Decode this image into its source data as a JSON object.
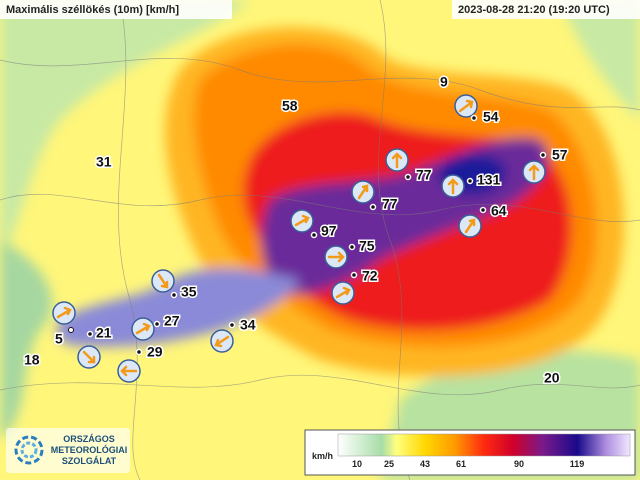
{
  "header": {
    "title": "Maximális széllökés (10m) [km/h]",
    "timestamp": "2023-08-28 21:20 (19:20 UTC)"
  },
  "stations": [
    9,
    54,
    57,
    58,
    31,
    77,
    131,
    77,
    64,
    97,
    75,
    72,
    35,
    27,
    34,
    21,
    5,
    29,
    18,
    20
  ],
  "legend": {
    "unit": "km/h",
    "ticks": [
      10,
      25,
      43,
      61,
      90,
      119
    ]
  },
  "logo": {
    "lines": [
      "ORSZÁGOS",
      "METEOROLÓGIAI",
      "SZOLGÁLAT"
    ]
  }
}
